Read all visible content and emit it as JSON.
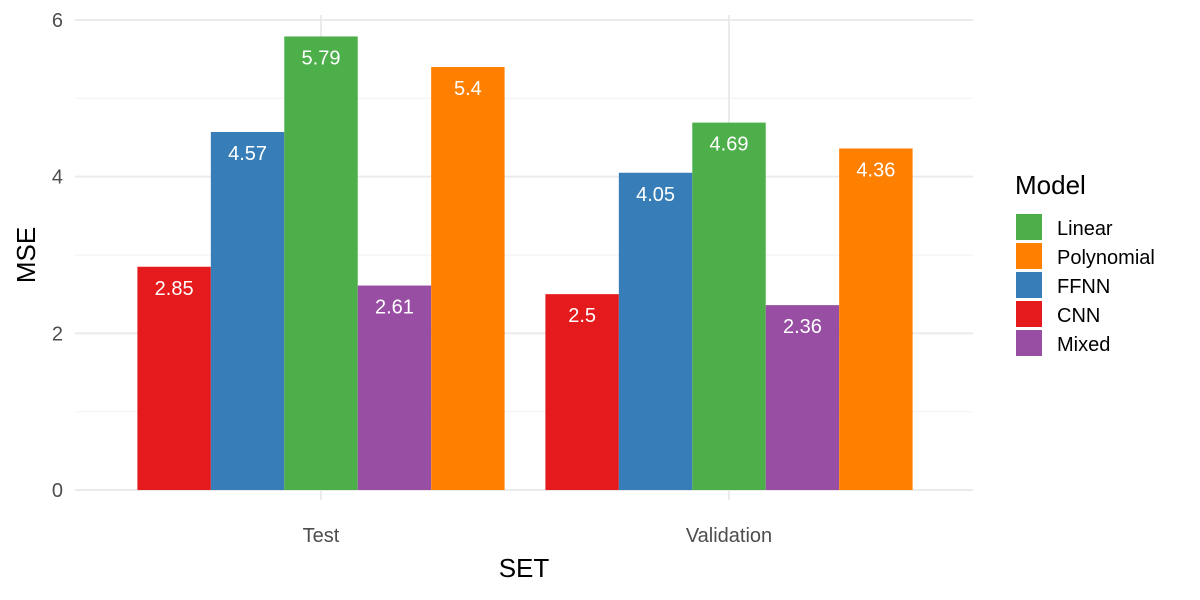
{
  "chart_data": {
    "type": "bar",
    "categories": [
      "Test",
      "Validation"
    ],
    "series": [
      {
        "name": "CNN",
        "color": "#e41a1c",
        "values": [
          2.85,
          2.5
        ]
      },
      {
        "name": "FFNN",
        "color": "#377eb8",
        "values": [
          4.57,
          4.05
        ]
      },
      {
        "name": "Linear",
        "color": "#4daf4a",
        "values": [
          5.79,
          4.69
        ]
      },
      {
        "name": "Mixed",
        "color": "#984ea3",
        "values": [
          2.61,
          2.36
        ]
      },
      {
        "name": "Polynomial",
        "color": "#ff7f00",
        "values": [
          5.4,
          4.36
        ]
      }
    ],
    "bar_labels": [
      [
        "2.85",
        "2.5"
      ],
      [
        "4.57",
        "4.05"
      ],
      [
        "5.79",
        "4.69"
      ],
      [
        "2.61",
        "2.36"
      ],
      [
        "5.4",
        "4.36"
      ]
    ],
    "xlabel": "SET",
    "ylabel": "MSE",
    "ylim": [
      0,
      6
    ],
    "y_ticks": [
      0,
      2,
      4,
      6
    ],
    "y_tick_labels": [
      "0",
      "2",
      "4",
      "6"
    ],
    "grid": true,
    "legend": {
      "title": "Model",
      "position": "right",
      "order": [
        "Linear",
        "Polynomial",
        "FFNN",
        "CNN",
        "Mixed"
      ]
    }
  }
}
